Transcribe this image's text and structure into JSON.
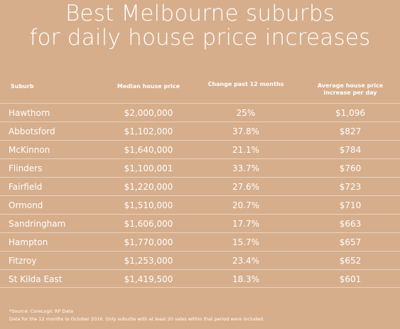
{
  "title": {
    "line1": "Best Melbourne suburbs",
    "line2": "for daily house price increases"
  },
  "table": {
    "headers": {
      "suburb": "Suburb",
      "median": "Median house price",
      "change": "Change past 12 months",
      "avg_line1": "Average house price",
      "avg_line2": "increase per day"
    },
    "rows": [
      {
        "suburb": "Hawthorn",
        "median": "$2,000,000",
        "change": "25%",
        "avg": "$1,096"
      },
      {
        "suburb": "Abbotsford",
        "median": "$1,102,000",
        "change": "37.8%",
        "avg": "$827"
      },
      {
        "suburb": "McKinnon",
        "median": "$1,640,000",
        "change": "21.1%",
        "avg": "$784"
      },
      {
        "suburb": "Flinders",
        "median": "$1,100,001",
        "change": "33.7%",
        "avg": "$760"
      },
      {
        "suburb": "Fairfield",
        "median": "$1,220,000",
        "change": "27.6%",
        "avg": "$723"
      },
      {
        "suburb": "Ormond",
        "median": "$1,510,000",
        "change": "20.7%",
        "avg": "$710"
      },
      {
        "suburb": "Sandringham",
        "median": "$1,606,000",
        "change": "17.7%",
        "avg": "$663"
      },
      {
        "suburb": "Hampton",
        "median": "$1,770,000",
        "change": "15.7%",
        "avg": "$657"
      },
      {
        "suburb": "Fitzroy",
        "median": "$1,253,000",
        "change": "23.4%",
        "avg": "$652"
      },
      {
        "suburb": "St Kilda East",
        "median": "$1,419,500",
        "change": "18.3%",
        "avg": "$601"
      }
    ]
  },
  "footnote": {
    "source": "*Source: CoreLogic RP Data",
    "note": "Data for the 12 months to October 2016. Only suburbs with at least 20 sales within that period were included."
  },
  "colors": {
    "background": "#d6ae8c",
    "text": "#ffffff"
  }
}
